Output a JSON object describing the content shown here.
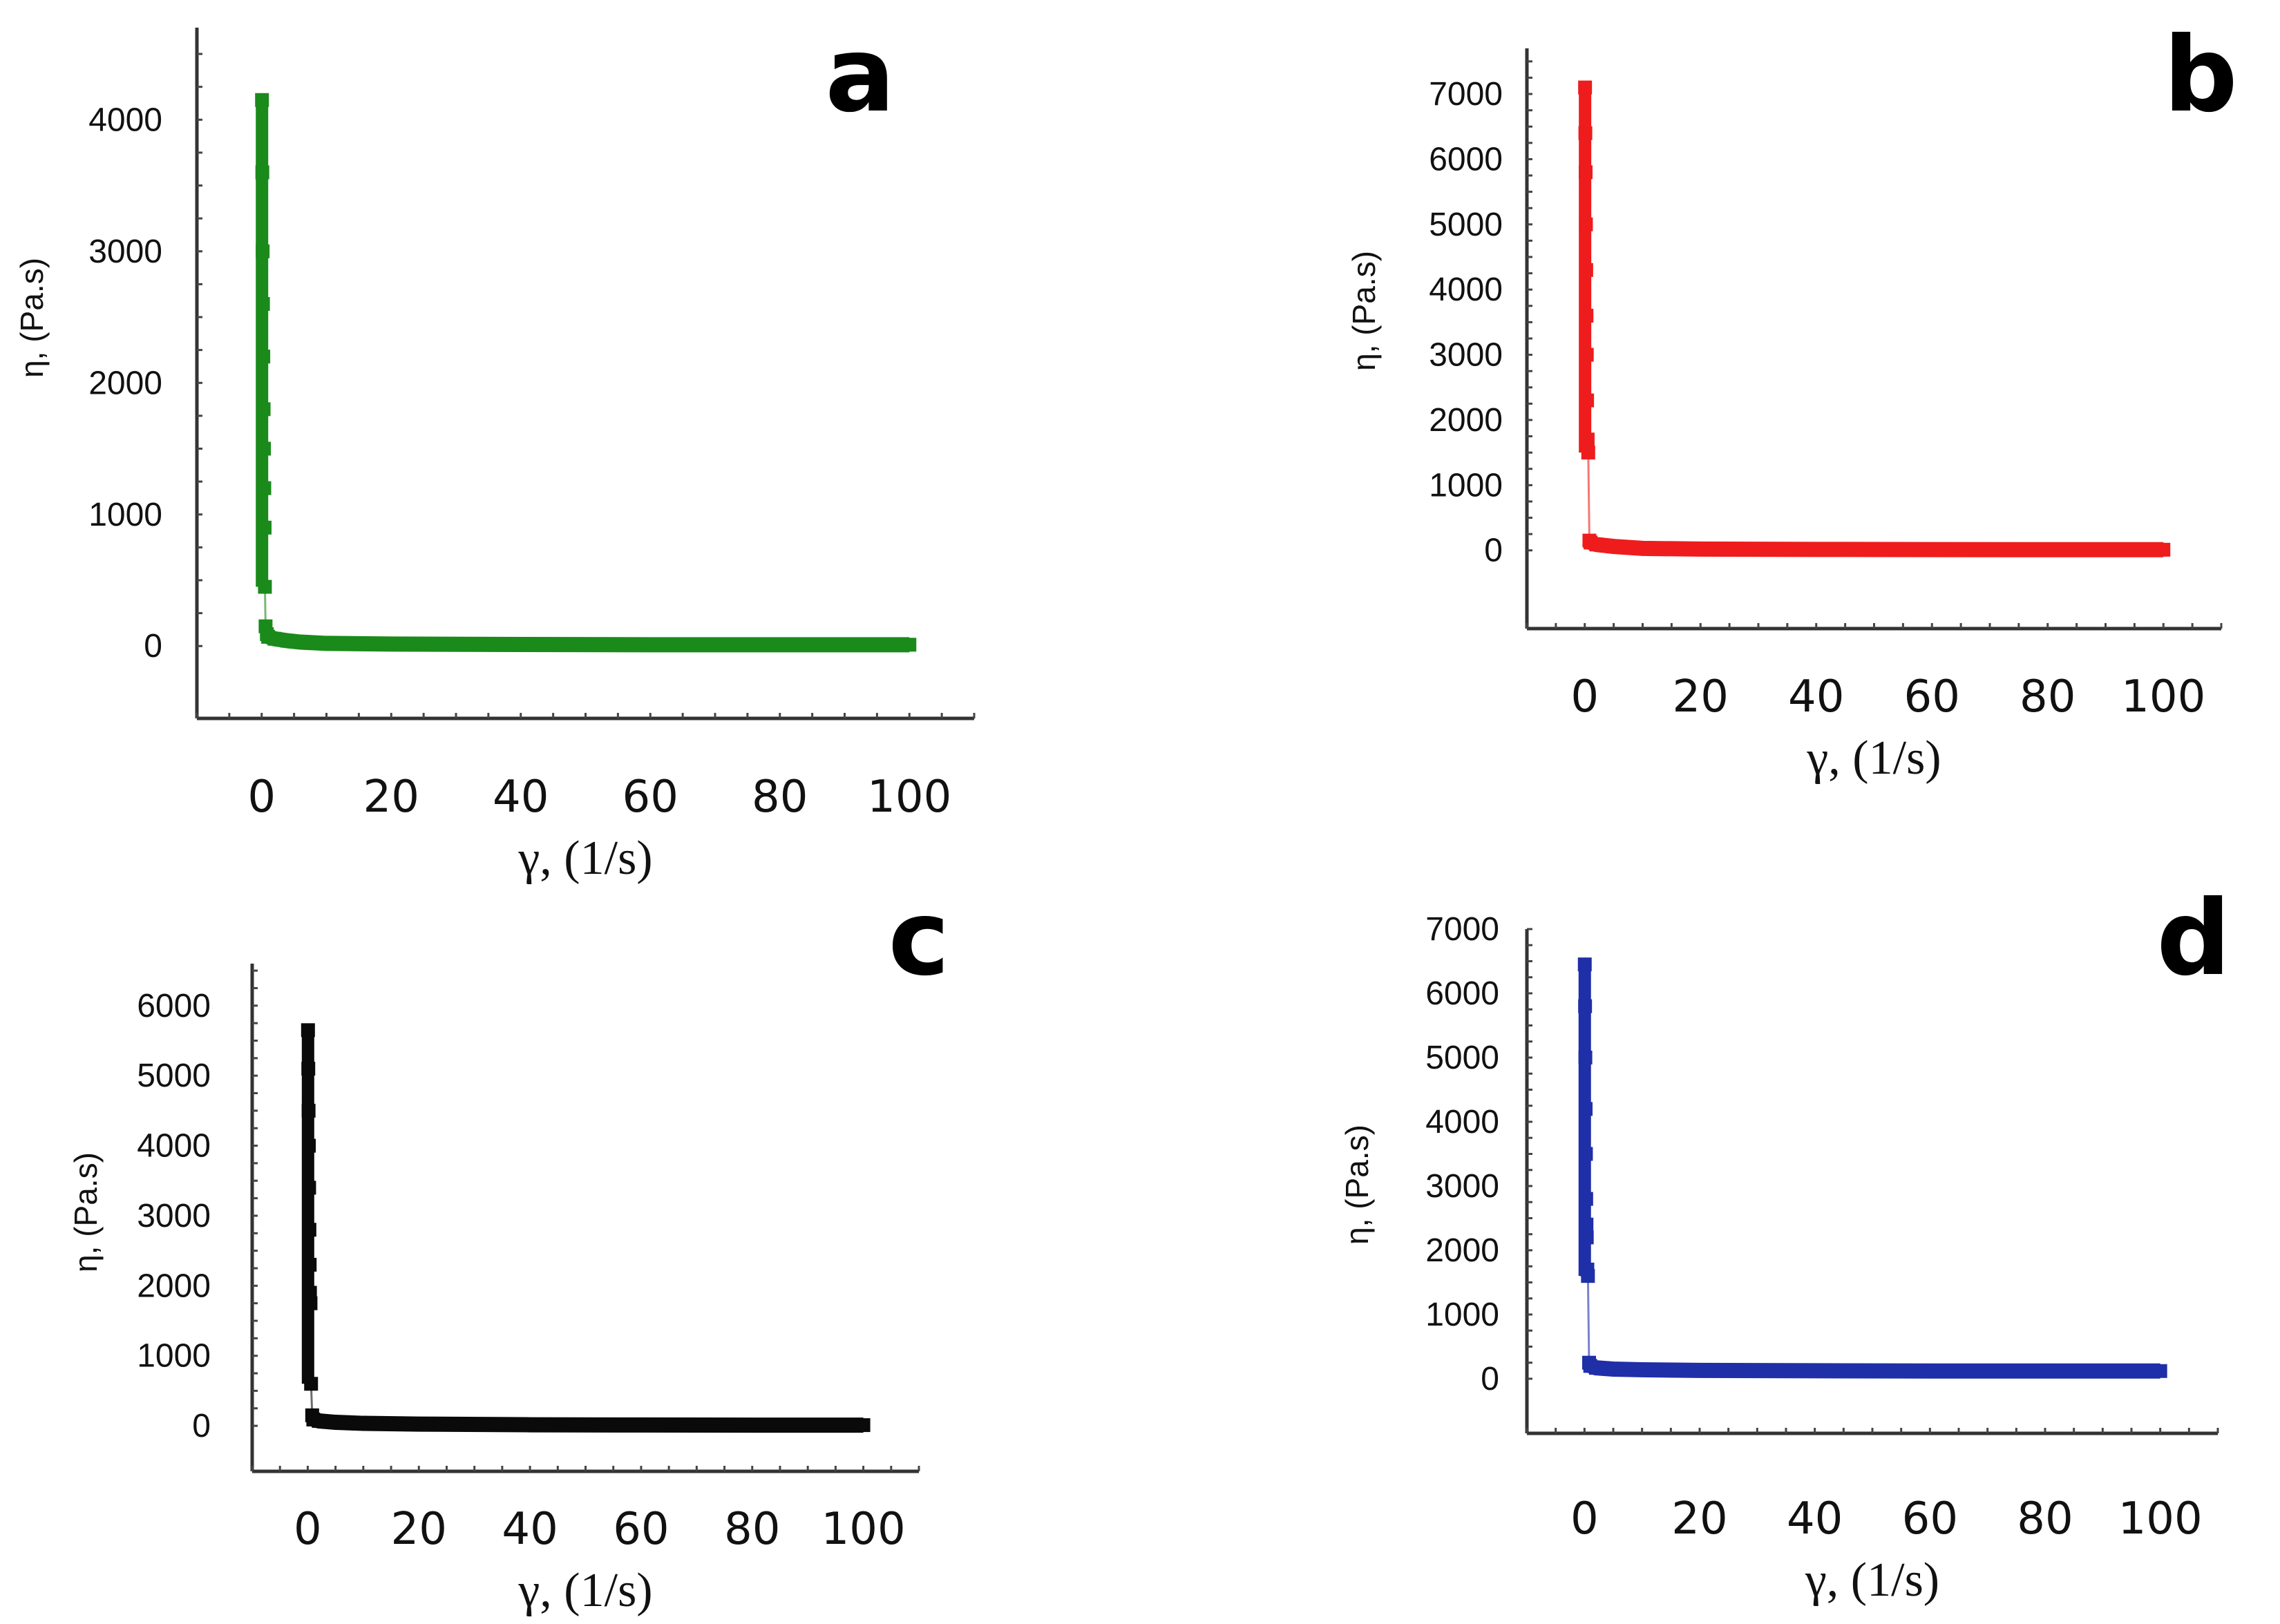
{
  "chart_data": [
    {
      "panel": "a",
      "type": "scatter",
      "color": "#1a8a1a",
      "xlabel": "γ, (1/s)",
      "ylabel": "η, (Pa.s)",
      "xlim": [
        -10,
        110
      ],
      "ylim": [
        -550,
        4700
      ],
      "xticks": [
        0,
        20,
        40,
        60,
        80,
        100
      ],
      "yticks": [
        0,
        1000,
        2000,
        3000,
        4000
      ],
      "x": [
        0.05,
        0.1,
        0.15,
        0.2,
        0.25,
        0.3,
        0.35,
        0.4,
        0.45,
        0.5,
        0.6,
        0.8,
        1,
        2,
        4,
        6,
        10,
        20,
        40,
        60,
        80,
        100
      ],
      "y": [
        4150,
        3600,
        3000,
        2600,
        2200,
        1800,
        1500,
        1200,
        900,
        450,
        150,
        90,
        70,
        55,
        40,
        30,
        20,
        15,
        12,
        10,
        10,
        10
      ]
    },
    {
      "panel": "b",
      "type": "scatter",
      "color": "#ee1c1c",
      "xlabel": "γ, (1/s)",
      "ylabel": "η, (Pa.s)",
      "xlim": [
        -10,
        110
      ],
      "ylim": [
        -1200,
        7700
      ],
      "xticks": [
        0,
        20,
        40,
        60,
        80,
        100
      ],
      "yticks": [
        0,
        1000,
        2000,
        3000,
        4000,
        5000,
        6000,
        7000
      ],
      "x": [
        0.05,
        0.1,
        0.15,
        0.2,
        0.25,
        0.3,
        0.35,
        0.4,
        0.5,
        0.6,
        0.8,
        1,
        2,
        5,
        10,
        20,
        40,
        60,
        80,
        100
      ],
      "y": [
        7100,
        6400,
        5800,
        5000,
        4300,
        3600,
        3000,
        2300,
        1700,
        1500,
        150,
        120,
        90,
        60,
        30,
        20,
        15,
        12,
        10,
        10
      ]
    },
    {
      "panel": "c",
      "type": "scatter",
      "color": "#0a0a0a",
      "xlabel": "γ, (1/s)",
      "ylabel": "η, (Pa.s)",
      "xlim": [
        -10,
        110
      ],
      "ylim": [
        -650,
        6600
      ],
      "xticks": [
        0,
        20,
        40,
        60,
        80,
        100
      ],
      "yticks": [
        0,
        1000,
        2000,
        3000,
        4000,
        5000,
        6000
      ],
      "x": [
        0.05,
        0.1,
        0.15,
        0.2,
        0.25,
        0.3,
        0.35,
        0.4,
        0.5,
        0.6,
        0.8,
        1,
        2,
        5,
        10,
        20,
        40,
        60,
        80,
        100
      ],
      "y": [
        5650,
        5100,
        4500,
        4000,
        3400,
        2800,
        2300,
        1900,
        1750,
        600,
        150,
        90,
        70,
        50,
        35,
        25,
        15,
        12,
        10,
        10
      ]
    },
    {
      "panel": "d",
      "type": "scatter",
      "color": "#1f2fa8",
      "xlabel": "γ, (1/s)",
      "ylabel": "η, (Pa.s)",
      "xlim": [
        -10,
        110
      ],
      "ylim": [
        -850,
        7000
      ],
      "xticks": [
        0,
        20,
        40,
        60,
        80,
        100
      ],
      "yticks": [
        0,
        1000,
        2000,
        3000,
        4000,
        5000,
        6000,
        7000
      ],
      "x": [
        0.05,
        0.1,
        0.15,
        0.2,
        0.25,
        0.3,
        0.35,
        0.4,
        0.5,
        0.6,
        0.8,
        1,
        2,
        5,
        10,
        20,
        40,
        60,
        80,
        100
      ],
      "y": [
        6450,
        5800,
        5000,
        4200,
        3500,
        2800,
        2400,
        2200,
        1700,
        1600,
        250,
        200,
        170,
        150,
        140,
        130,
        125,
        120,
        120,
        120
      ]
    }
  ]
}
